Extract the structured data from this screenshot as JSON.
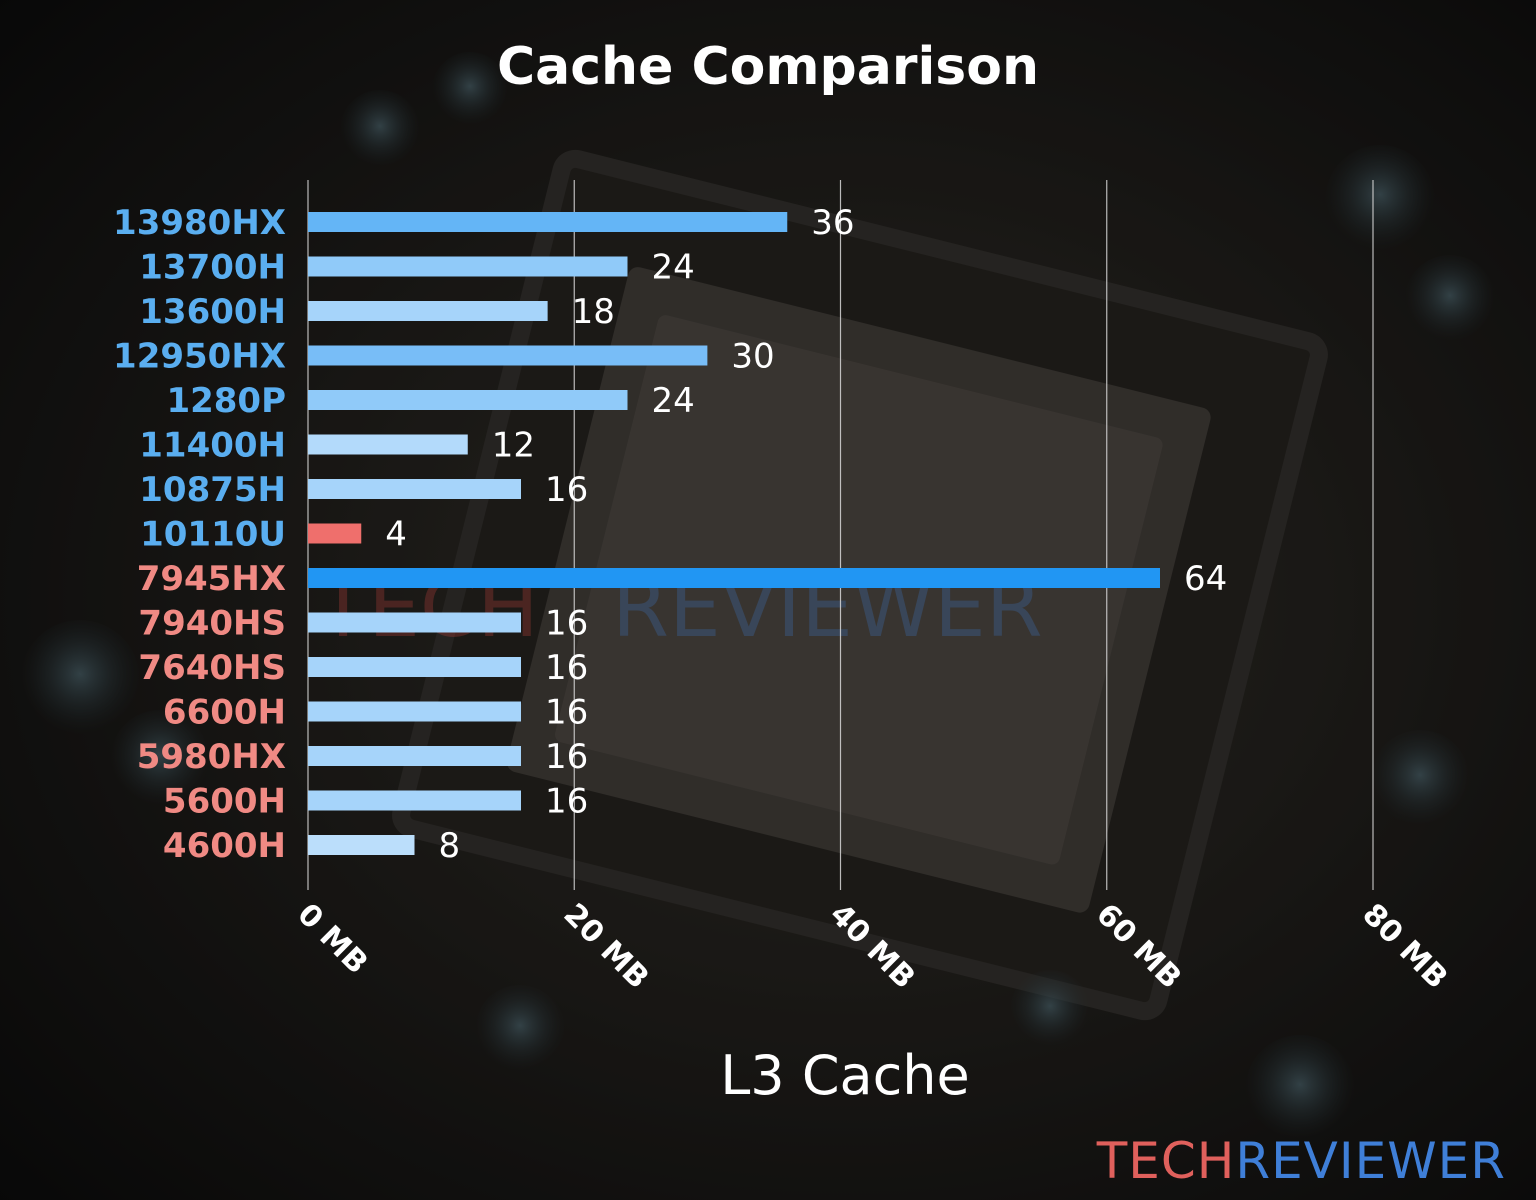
{
  "chart_data": {
    "type": "bar",
    "orientation": "horizontal",
    "title": "Cache Comparison",
    "xlabel": "L3 Cache",
    "ylabel": "",
    "xlim": [
      0,
      80
    ],
    "x_ticks": [
      0,
      20,
      40,
      60,
      80
    ],
    "x_tick_labels": [
      "0 MB",
      "20 MB",
      "40 MB",
      "60 MB",
      "80 MB"
    ],
    "grid": "vertical",
    "categories": [
      "13980HX",
      "13700H",
      "13600H",
      "12950HX",
      "1280P",
      "11400H",
      "10875H",
      "10110U",
      "7945HX",
      "7940HS",
      "7640HS",
      "6600H",
      "5980HX",
      "5600H",
      "4600H"
    ],
    "values": [
      36,
      24,
      18,
      30,
      24,
      12,
      16,
      4,
      64,
      16,
      16,
      16,
      16,
      16,
      8
    ],
    "value_labels": [
      "36",
      "24",
      "18",
      "30",
      "24",
      "12",
      "16",
      "4",
      "64",
      "16",
      "16",
      "16",
      "16",
      "16",
      "8"
    ],
    "label_colors": [
      "#5aaef0",
      "#5aaef0",
      "#5aaef0",
      "#5aaef0",
      "#5aaef0",
      "#5aaef0",
      "#5aaef0",
      "#5aaef0",
      "#f08a84",
      "#f08a84",
      "#f08a84",
      "#f08a84",
      "#f08a84",
      "#f08a84",
      "#f08a84"
    ],
    "bar_colors": [
      "#64b5f6",
      "#90caf9",
      "#a6d4fa",
      "#78bdf7",
      "#90caf9",
      "#b3dafb",
      "#a6d4fa",
      "#ef6f6c",
      "#2196f3",
      "#a6d4fa",
      "#a6d4fa",
      "#a6d4fa",
      "#a6d4fa",
      "#a6d4fa",
      "#bbdefb"
    ]
  },
  "watermark": {
    "part1": "TECH",
    "part2": "REVIEWER"
  },
  "brand": {
    "part1": "TECH",
    "part2": "REVIEWER",
    "color1": "#e0605c",
    "color2": "#3f7fd8"
  }
}
